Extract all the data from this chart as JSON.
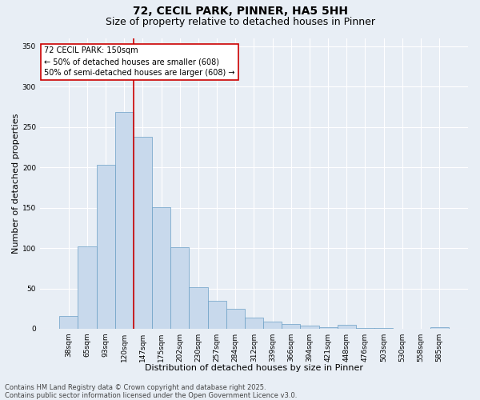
{
  "title1": "72, CECIL PARK, PINNER, HA5 5HH",
  "title2": "Size of property relative to detached houses in Pinner",
  "xlabel": "Distribution of detached houses by size in Pinner",
  "ylabel": "Number of detached properties",
  "bar_labels": [
    "38sqm",
    "65sqm",
    "93sqm",
    "120sqm",
    "147sqm",
    "175sqm",
    "202sqm",
    "230sqm",
    "257sqm",
    "284sqm",
    "312sqm",
    "339sqm",
    "366sqm",
    "394sqm",
    "421sqm",
    "448sqm",
    "476sqm",
    "503sqm",
    "530sqm",
    "558sqm",
    "585sqm"
  ],
  "bar_values": [
    16,
    102,
    203,
    268,
    238,
    151,
    101,
    51,
    35,
    25,
    14,
    9,
    6,
    4,
    2,
    5,
    1,
    1,
    0,
    0,
    2
  ],
  "bar_color": "#c8d9ec",
  "bar_edgecolor": "#6a9fc5",
  "vline_color": "#cc0000",
  "vline_x_index": 3.5,
  "annotation_text": "72 CECIL PARK: 150sqm\n← 50% of detached houses are smaller (608)\n50% of semi-detached houses are larger (608) →",
  "annotation_box_edgecolor": "#cc0000",
  "annotation_box_facecolor": "#ffffff",
  "ylim": [
    0,
    360
  ],
  "yticks": [
    0,
    50,
    100,
    150,
    200,
    250,
    300,
    350
  ],
  "bg_color": "#e8eef5",
  "grid_color": "#ffffff",
  "footer_text": "Contains HM Land Registry data © Crown copyright and database right 2025.\nContains public sector information licensed under the Open Government Licence v3.0.",
  "title1_fontsize": 10,
  "title2_fontsize": 9,
  "xlabel_fontsize": 8,
  "ylabel_fontsize": 8,
  "tick_fontsize": 6.5,
  "annotation_fontsize": 7,
  "footer_fontsize": 6
}
